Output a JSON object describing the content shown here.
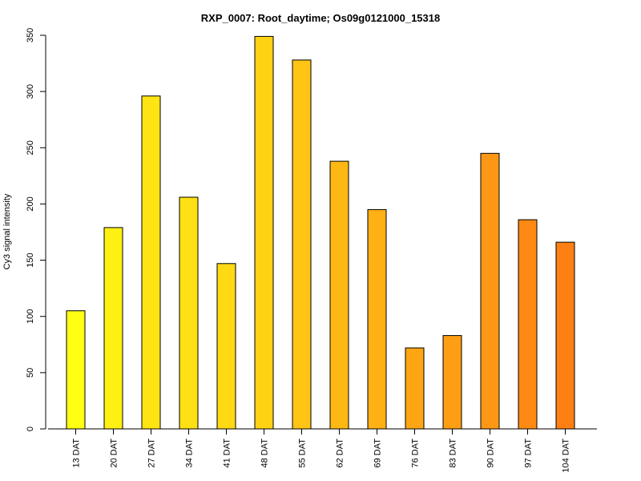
{
  "chart_data": {
    "type": "bar",
    "title": "RXP_0007: Root_daytime; Os09g0121000_15318",
    "xlabel": "",
    "ylabel": "Cy3 signal intensity",
    "ylim": [
      0,
      350
    ],
    "yticks": [
      0,
      50,
      100,
      150,
      200,
      250,
      300,
      350
    ],
    "categories": [
      "13 DAT",
      "20 DAT",
      "27 DAT",
      "34 DAT",
      "41 DAT",
      "48 DAT",
      "55 DAT",
      "62 DAT",
      "69 DAT",
      "76 DAT",
      "83 DAT",
      "90 DAT",
      "97 DAT",
      "104 DAT"
    ],
    "values": [
      105,
      179,
      296,
      206,
      147,
      349,
      328,
      238,
      195,
      72,
      83,
      245,
      186,
      166
    ],
    "colors": [
      "#FFFF14",
      "#FFF014",
      "#FFE414",
      "#FFE014",
      "#FFD914",
      "#FFD214",
      "#FFC414",
      "#FEB814",
      "#FEB014",
      "#FEA514",
      "#FE9E14",
      "#FE9714",
      "#FE8A14",
      "#FE7F14"
    ],
    "grid": false,
    "legend": "none"
  }
}
